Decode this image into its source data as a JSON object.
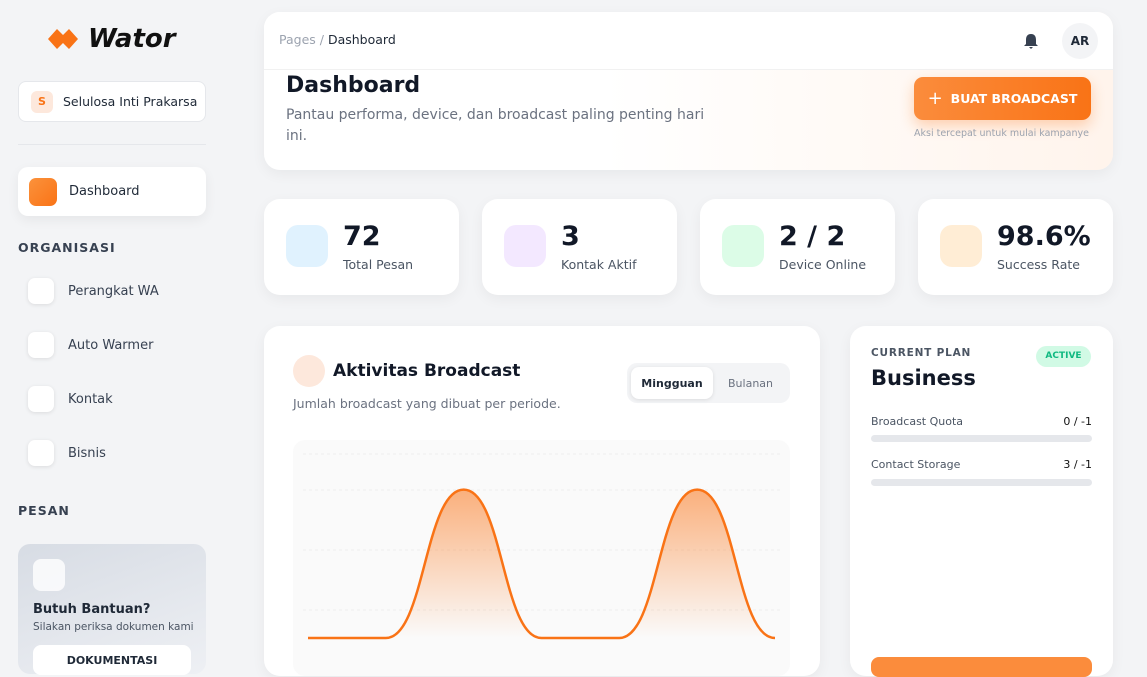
{
  "sidebar": {
    "brand": "Wator",
    "org": {
      "initial": "S",
      "name": "Selulosa Inti Prakarsa"
    },
    "active": "Dashboard",
    "sections": [
      {
        "title": "ORGANISASI",
        "items": [
          "Perangkat WA",
          "Auto Warmer",
          "Kontak",
          "Bisnis"
        ]
      },
      {
        "title": "PESAN"
      }
    ],
    "help": {
      "title": "Butuh Bantuan?",
      "text": "Silakan periksa dokumen kami",
      "button": "DOKUMENTASI"
    }
  },
  "topbar": {
    "breadcrumb": [
      "Pages",
      "Dashboard"
    ],
    "avatar": "AR"
  },
  "header": {
    "title": "Dashboard",
    "subtitle": "Pantau performa, device, dan broadcast paling penting hari ini.",
    "button": "BUAT BROADCAST",
    "hint": "Aksi tercepat untuk mulai kampanye"
  },
  "stats": [
    {
      "value": 72,
      "label": "Total Pesan"
    },
    {
      "value": 3,
      "label": "Kontak Aktif"
    },
    {
      "value": "2 / 2",
      "label": "Device Online"
    },
    {
      "value": "98.6%",
      "label": "Success Rate"
    }
  ],
  "activity": {
    "title": "Aktivitas Broadcast",
    "subtitle": "Jumlah broadcast yang dibuat per periode.",
    "tabs": [
      "Mingguan",
      "Bulanan"
    ]
  },
  "chart_data": {
    "type": "line",
    "values": [
      0,
      0,
      1,
      0,
      0,
      1,
      0
    ],
    "ylim": [
      0,
      1.2
    ],
    "color": "#f97316"
  },
  "plan": {
    "label": "CURRENT PLAN",
    "badge": "ACTIVE",
    "name": "Business",
    "quotas": [
      {
        "label": "Broadcast Quota",
        "value": "0 / -1"
      },
      {
        "label": "Contact Storage",
        "value": "3 / -1"
      }
    ]
  }
}
